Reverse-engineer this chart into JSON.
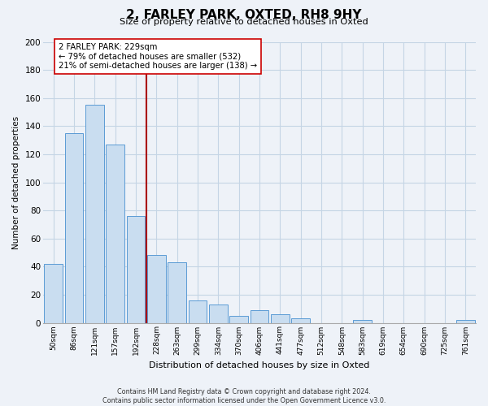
{
  "title": "2, FARLEY PARK, OXTED, RH8 9HY",
  "subtitle": "Size of property relative to detached houses in Oxted",
  "xlabel": "Distribution of detached houses by size in Oxted",
  "ylabel": "Number of detached properties",
  "bar_labels": [
    "50sqm",
    "86sqm",
    "121sqm",
    "157sqm",
    "192sqm",
    "228sqm",
    "263sqm",
    "299sqm",
    "334sqm",
    "370sqm",
    "406sqm",
    "441sqm",
    "477sqm",
    "512sqm",
    "548sqm",
    "583sqm",
    "619sqm",
    "654sqm",
    "690sqm",
    "725sqm",
    "761sqm"
  ],
  "bar_values": [
    42,
    135,
    155,
    127,
    76,
    48,
    43,
    16,
    13,
    5,
    9,
    6,
    3,
    0,
    0,
    2,
    0,
    0,
    0,
    0,
    2
  ],
  "bar_color": "#c9ddf0",
  "bar_edge_color": "#5b9bd5",
  "highlight_line_index": 5,
  "highlight_line_color": "#aa0000",
  "annotation_text": "2 FARLEY PARK: 229sqm\n← 79% of detached houses are smaller (532)\n21% of semi-detached houses are larger (138) →",
  "annotation_box_color": "#ffffff",
  "annotation_box_edge_color": "#cc0000",
  "ylim": [
    0,
    200
  ],
  "yticks": [
    0,
    20,
    40,
    60,
    80,
    100,
    120,
    140,
    160,
    180,
    200
  ],
  "grid_color": "#c5d5e5",
  "footer_line1": "Contains HM Land Registry data © Crown copyright and database right 2024.",
  "footer_line2": "Contains public sector information licensed under the Open Government Licence v3.0.",
  "bg_color": "#eef2f8"
}
